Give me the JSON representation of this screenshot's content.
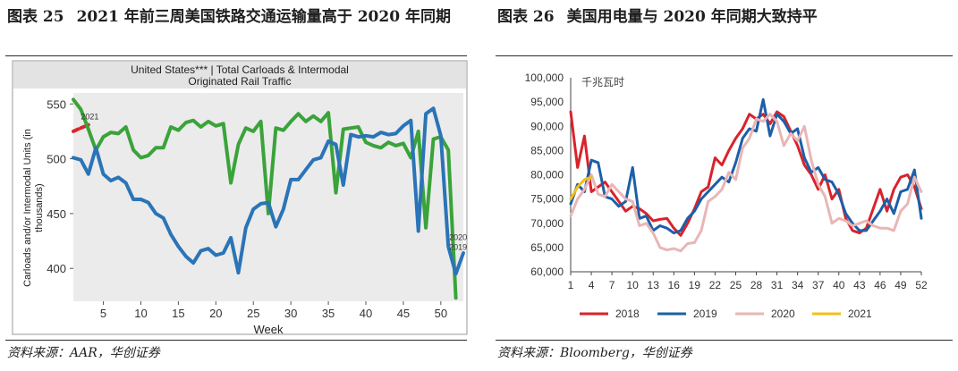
{
  "left": {
    "fig_label": "图表 25",
    "title": "2021 年前三周美国铁路交通运输量高于 2020 年同期",
    "source": "资料来源：AAR，华创证券",
    "chart_data": {
      "type": "line",
      "title": "United States*** | Total Carloads & Intermodal Originated Rail Traffic",
      "title_lines": [
        "United States*** | Total Carloads & Intermodal",
        "Originated Rail Traffic"
      ],
      "xlabel": "Week",
      "ylabel": "Carloads and/or Intermodal Units (in thousands)",
      "ylabel_lines": [
        "Carloads and/or Intermodal Units (in",
        "thousands)"
      ],
      "xlim": [
        1,
        53
      ],
      "ylim": [
        370,
        560
      ],
      "x_ticks": [
        5,
        10,
        15,
        20,
        25,
        30,
        35,
        40,
        45,
        50
      ],
      "y_ticks": [
        400,
        450,
        500,
        550
      ],
      "plot_bg": "#ebebeb",
      "annotations": [
        {
          "text": "2021",
          "x": 2,
          "y": 536
        },
        {
          "text": "2020",
          "x": 51.1,
          "y": 426
        },
        {
          "text": "2019",
          "x": 51.1,
          "y": 417
        }
      ],
      "series": [
        {
          "name": "2021",
          "color": "#d9262a",
          "x": [
            1,
            2,
            3
          ],
          "values": [
            525,
            528,
            531
          ]
        },
        {
          "name": "2020",
          "color": "#3aa33a",
          "x": [
            1,
            2,
            3,
            4,
            5,
            6,
            7,
            8,
            9,
            10,
            11,
            12,
            13,
            14,
            15,
            16,
            17,
            18,
            19,
            20,
            21,
            22,
            23,
            24,
            25,
            26,
            27,
            28,
            29,
            30,
            31,
            32,
            33,
            34,
            35,
            36,
            37,
            38,
            39,
            40,
            41,
            42,
            43,
            44,
            45,
            46,
            47,
            48,
            49,
            50,
            51,
            52
          ],
          "values": [
            554,
            545,
            527,
            508,
            520,
            524,
            523,
            529,
            508,
            501,
            503,
            510,
            510,
            529,
            526,
            533,
            535,
            529,
            534,
            530,
            532,
            478,
            513,
            528,
            525,
            534,
            450,
            528,
            526,
            534,
            541,
            534,
            539,
            534,
            542,
            469,
            527,
            528,
            529,
            515,
            512,
            510,
            515,
            512,
            514,
            501,
            525,
            437,
            518,
            520,
            508,
            373
          ]
        },
        {
          "name": "2019",
          "color": "#2a74b7",
          "x": [
            1,
            2,
            3,
            4,
            5,
            6,
            7,
            8,
            9,
            10,
            11,
            12,
            13,
            14,
            15,
            16,
            17,
            18,
            19,
            20,
            21,
            22,
            23,
            24,
            25,
            26,
            27,
            28,
            29,
            30,
            31,
            32,
            33,
            34,
            35,
            36,
            37,
            38,
            39,
            40,
            41,
            42,
            43,
            44,
            45,
            46,
            47,
            48,
            49,
            50,
            51,
            52,
            53
          ],
          "values": [
            501,
            499,
            486,
            510,
            486,
            480,
            483,
            478,
            463,
            463,
            460,
            450,
            446,
            431,
            420,
            411,
            405,
            416,
            418,
            412,
            414,
            428,
            396,
            437,
            454,
            459,
            460,
            438,
            454,
            481,
            481,
            490,
            499,
            501,
            516,
            513,
            476,
            522,
            520,
            521,
            520,
            524,
            522,
            523,
            530,
            535,
            434,
            541,
            546,
            521,
            420,
            395,
            414
          ]
        }
      ]
    }
  },
  "right": {
    "fig_label": "图表 26",
    "title": "美国用电量与 2020 年同期大致持平",
    "source": "资料来源：Bloomberg，华创证券",
    "chart_data": {
      "type": "line",
      "unit_label": "千兆瓦时",
      "xlim": [
        1,
        52
      ],
      "ylim": [
        60000,
        100000
      ],
      "x_ticks": [
        1,
        4,
        7,
        10,
        13,
        16,
        19,
        22,
        25,
        28,
        31,
        34,
        37,
        40,
        43,
        46,
        49,
        52
      ],
      "y_ticks": [
        60000,
        65000,
        70000,
        75000,
        80000,
        85000,
        90000,
        95000,
        100000
      ],
      "y_tick_labels": [
        "60,000",
        "65,000",
        "70,000",
        "75,000",
        "80,000",
        "85,000",
        "90,000",
        "95,000",
        "100,000"
      ],
      "legend_position": "bottom",
      "series": [
        {
          "name": "2018",
          "color": "#d9232a",
          "x": [
            1,
            2,
            3,
            4,
            5,
            6,
            7,
            8,
            9,
            10,
            11,
            12,
            13,
            14,
            15,
            16,
            17,
            18,
            19,
            20,
            21,
            22,
            23,
            24,
            25,
            26,
            27,
            28,
            29,
            30,
            31,
            32,
            33,
            34,
            35,
            36,
            37,
            38,
            39,
            40,
            41,
            42,
            43,
            44,
            45,
            46,
            47,
            48,
            49,
            50,
            51,
            52
          ],
          "values": [
            93000,
            81500,
            88000,
            76500,
            77500,
            78500,
            76500,
            74500,
            72500,
            73500,
            73000,
            72000,
            70500,
            70800,
            71000,
            69000,
            67500,
            70000,
            73000,
            76500,
            77500,
            83500,
            82000,
            85000,
            87500,
            89500,
            92500,
            91500,
            92500,
            90500,
            93000,
            92000,
            89000,
            86000,
            82000,
            80000,
            77000,
            80000,
            75000,
            77000,
            71000,
            68500,
            68000,
            69000,
            73000,
            77000,
            72500,
            77000,
            79500,
            80000,
            77500,
            73000
          ]
        },
        {
          "name": "2019",
          "color": "#1c5fa8",
          "x": [
            1,
            2,
            3,
            4,
            5,
            6,
            7,
            8,
            9,
            10,
            11,
            12,
            13,
            14,
            15,
            16,
            17,
            18,
            19,
            20,
            21,
            22,
            23,
            24,
            25,
            26,
            27,
            28,
            29,
            30,
            31,
            32,
            33,
            34,
            35,
            36,
            37,
            38,
            39,
            40,
            41,
            42,
            43,
            44,
            45,
            46,
            47,
            48,
            49,
            50,
            51,
            52
          ],
          "values": [
            74000,
            78000,
            76500,
            83000,
            82500,
            75500,
            75000,
            73500,
            74500,
            81500,
            71000,
            71500,
            68500,
            69500,
            69000,
            68000,
            68500,
            71000,
            72500,
            75000,
            76500,
            78000,
            79500,
            78500,
            82500,
            87500,
            89500,
            89000,
            95500,
            88000,
            92500,
            91000,
            88500,
            89500,
            83500,
            80500,
            81500,
            79000,
            78500,
            76000,
            72000,
            70000,
            68500,
            68500,
            70500,
            72500,
            75000,
            72000,
            76500,
            77000,
            81000,
            71000
          ]
        },
        {
          "name": "2020",
          "color": "#e8b6b6",
          "x": [
            1,
            2,
            3,
            4,
            5,
            6,
            7,
            8,
            9,
            10,
            11,
            12,
            13,
            14,
            15,
            16,
            17,
            18,
            19,
            20,
            21,
            22,
            23,
            24,
            25,
            26,
            27,
            28,
            29,
            30,
            31,
            32,
            33,
            34,
            35,
            36,
            37,
            38,
            39,
            40,
            41,
            42,
            43,
            44,
            45,
            46,
            47,
            48,
            49,
            50,
            51,
            52
          ],
          "values": [
            71500,
            75000,
            77000,
            80000,
            76000,
            75500,
            78000,
            76500,
            75000,
            74500,
            69500,
            70000,
            68000,
            65000,
            64500,
            64800,
            64300,
            65800,
            66000,
            68500,
            74500,
            75500,
            77000,
            80500,
            79000,
            85500,
            87500,
            91500,
            91000,
            92500,
            91000,
            86000,
            88500,
            87000,
            90000,
            83000,
            78000,
            75500,
            70000,
            71000,
            70500,
            69500,
            70000,
            70500,
            69500,
            69000,
            69000,
            68500,
            72500,
            74000,
            79500,
            76500
          ]
        },
        {
          "name": "2021",
          "color": "#f2c018",
          "x": [
            1,
            2,
            3,
            4
          ],
          "values": [
            75000,
            77500,
            79000,
            79500
          ]
        }
      ]
    }
  }
}
